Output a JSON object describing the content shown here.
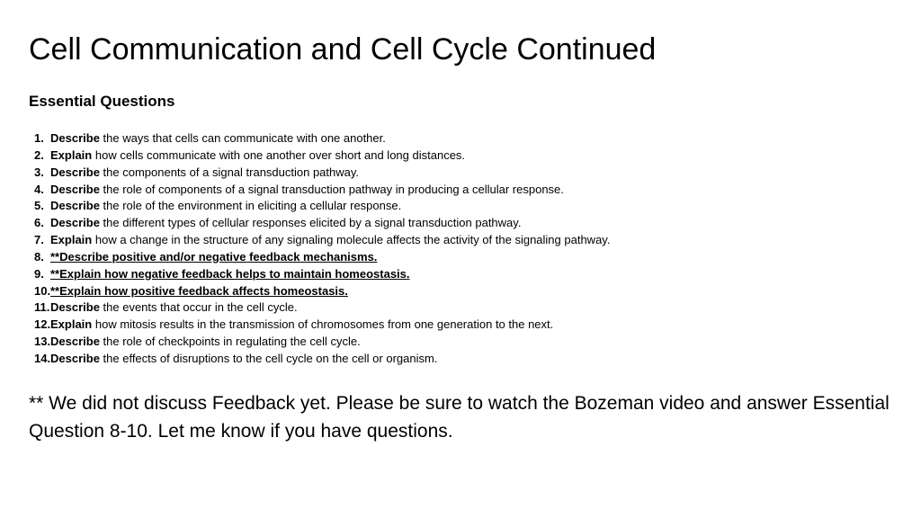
{
  "title": "Cell Communication and Cell Cycle Continued",
  "subheading": "Essential Questions",
  "questions": [
    {
      "verb": "Describe",
      "text": " the ways that cells can communicate with one another.",
      "emph": false
    },
    {
      "verb": "Explain",
      "text": " how cells communicate with one another over short and long distances.",
      "emph": false
    },
    {
      "verb": "Describe",
      "text": " the components of a signal transduction pathway.",
      "emph": false
    },
    {
      "verb": "Describe",
      "text": " the role of components of a signal transduction pathway in producing a cellular response.",
      "emph": false
    },
    {
      "verb": "Describe",
      "text": " the role of the environment in eliciting a cellular response.",
      "emph": false
    },
    {
      "verb": "Describe",
      "text": " the different types of cellular responses elicited by a signal transduction pathway.",
      "emph": false
    },
    {
      "verb": "Explain",
      "text": " how a change in the structure of any signaling molecule affects the activity of the signaling pathway.",
      "emph": false
    },
    {
      "full": "**Describe positive and/or negative feedback mechanisms.",
      "emph": true
    },
    {
      "full": "**Explain how negative feedback helps to maintain homeostasis.",
      "emph": true
    },
    {
      "full": "**Explain how positive feedback affects homeostasis.",
      "emph": true
    },
    {
      "verb": "Describe",
      "text": " the events that occur in the cell cycle.",
      "emph": false
    },
    {
      "verb": "Explain",
      "text": " how mitosis results in the transmission of chromosomes from one generation to the next.",
      "emph": false
    },
    {
      "verb": "Describe",
      "text": " the role of checkpoints in regulating the cell cycle.",
      "emph": false
    },
    {
      "verb": "Describe",
      "text": " the effects of disruptions to the cell cycle on the cell or organism.",
      "emph": false
    }
  ],
  "note": "** We did not discuss Feedback yet. Please be sure to watch the Bozeman video and answer Essential Question 8-10. Let me know if you have questions.",
  "colors": {
    "background": "#ffffff",
    "text": "#000000"
  },
  "typography": {
    "title_fontsize": 34,
    "subheading_fontsize": 17,
    "list_fontsize": 13,
    "note_fontsize": 21,
    "font_family": "Arial"
  }
}
